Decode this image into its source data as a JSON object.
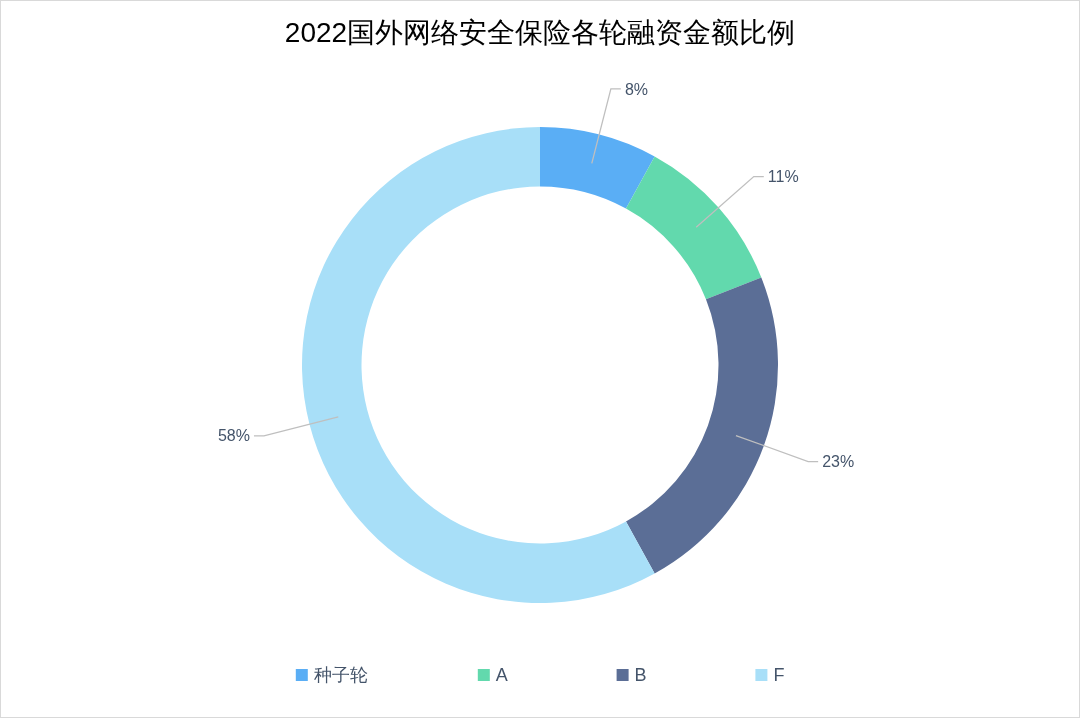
{
  "chart_data": {
    "type": "donut",
    "title": "2022国外网络安全保险各轮融资金额比例",
    "categories": [
      "种子轮",
      "A",
      "B",
      "F"
    ],
    "values": [
      8,
      11,
      23,
      58
    ],
    "colors": [
      "#5aaef5",
      "#62d9ad",
      "#5b6e96",
      "#a8dff8"
    ],
    "value_labels": [
      "8%",
      "11%",
      "23%",
      "58%"
    ],
    "legend": "bottom"
  }
}
